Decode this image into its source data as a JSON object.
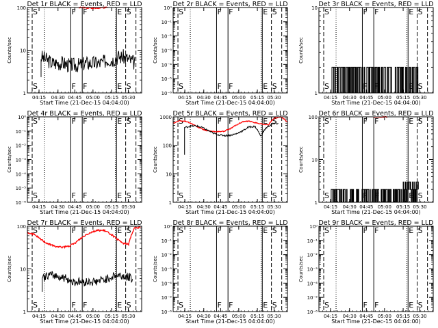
{
  "figure": {
    "xlabel": "Start Time (21-Dec-15 04:04:00)",
    "ylabel": "Counts/sec",
    "xticks": [
      "04:15",
      "04:30",
      "04:45",
      "05:00",
      "05:15",
      "05:30"
    ],
    "vlines": [
      {
        "label": "S",
        "style": "dashed",
        "pos": 4.2
      },
      {
        "label": "",
        "style": "dotted",
        "pos": 15
      },
      {
        "label": "F",
        "style": "solid",
        "pos": 38
      },
      {
        "label": "F",
        "style": "solid",
        "pos": 48
      },
      {
        "label": "",
        "style": "dotted",
        "pos": 77
      },
      {
        "label": "E",
        "style": "solid",
        "pos": 78
      },
      {
        "label": "S",
        "style": "dashed",
        "pos": 86
      },
      {
        "label": "",
        "style": "dashed",
        "pos": 95
      }
    ]
  },
  "chart_data": [
    {
      "type": "line",
      "title": "Det 1r BLACK = Events, RED = LLD",
      "yscale": "log",
      "ylim": [
        1,
        100
      ],
      "yticks": [
        "1",
        "10",
        "100"
      ],
      "series": [
        {
          "name": "BLACK",
          "color": "#000000",
          "kind": "noisy",
          "y": [
            7,
            6,
            5,
            5,
            5,
            4.5,
            4.5,
            4.5,
            5,
            5,
            5,
            5,
            6,
            6,
            7,
            7,
            6,
            5
          ],
          "x_range": [
            12,
            94
          ],
          "noise": 0.35,
          "start_drop": 2.6
        },
        {
          "name": "RED",
          "color": "#ff0000",
          "kind": "top",
          "y": [
            100,
            98,
            96,
            100
          ],
          "x_range": [
            45,
            70
          ],
          "noise": 0.03
        }
      ]
    },
    {
      "type": "line",
      "title": "Det 2r BLACK = Events, RED = LLD",
      "yscale": "log",
      "ylim": [
        1e-06,
        1
      ],
      "yticks": [
        "10⁻⁶",
        "10⁻⁵",
        "10⁻⁴",
        "10⁻³",
        "10⁻²",
        "10⁻¹",
        "10⁰"
      ],
      "series": []
    },
    {
      "type": "line",
      "title": "Det 3r BLACK = Events, RED = LLD",
      "yscale": "log",
      "ylim": [
        1,
        10
      ],
      "yticks": [
        "1",
        "10"
      ],
      "series": [
        {
          "name": "BLACK",
          "color": "#000000",
          "kind": "binary",
          "levels": [
            1,
            2
          ],
          "x_range": [
            10,
            87
          ]
        }
      ]
    },
    {
      "type": "line",
      "title": "Det 4r BLACK = Events, RED = LLD",
      "yscale": "log",
      "ylim": [
        1e-06,
        1
      ],
      "yticks": [
        "10⁻⁶",
        "10⁻⁵",
        "10⁻⁴",
        "10⁻³",
        "10⁻²",
        "10⁻¹",
        "10⁰"
      ],
      "series": []
    },
    {
      "type": "line",
      "title": "Det 5r BLACK = Events, RED = LLD",
      "yscale": "log",
      "ylim": [
        1,
        1000
      ],
      "yticks": [
        "1",
        "10",
        "100",
        "1000"
      ],
      "series": [
        {
          "name": "RED",
          "color": "#ff0000",
          "kind": "smooth",
          "y": [
            600,
            720,
            700,
            560,
            420,
            340,
            310,
            300,
            310,
            380,
            520,
            680,
            700,
            620,
            560,
            520,
            900,
            1000,
            650
          ],
          "x_range": [
            0,
            100
          ],
          "noise": 0.03
        },
        {
          "name": "BLACK",
          "color": "#000000",
          "kind": "noisy",
          "y": [
            420,
            470,
            480,
            420,
            330,
            260,
            230,
            220,
            230,
            260,
            330,
            440,
            460,
            200,
            420,
            560,
            590
          ],
          "x_range": [
            10,
            92
          ],
          "noise": 0.06,
          "start_drop": 4
        }
      ]
    },
    {
      "type": "line",
      "title": "Det 6r BLACK = Events, RED = LLD",
      "yscale": "log",
      "ylim": [
        1,
        100
      ],
      "yticks": [
        "1",
        "10",
        "100"
      ],
      "series": [
        {
          "name": "BLACK",
          "color": "#000000",
          "kind": "binary",
          "levels": [
            1,
            2,
            3
          ],
          "x_range": [
            10,
            87
          ]
        },
        {
          "name": "RED",
          "color": "#ff0000",
          "kind": "top",
          "y": [
            100,
            98,
            100
          ],
          "x_range": [
            48,
            60
          ],
          "noise": 0.02
        }
      ]
    },
    {
      "type": "line",
      "title": "Det 7r BLACK = Events, RED = LLD",
      "yscale": "log",
      "ylim": [
        1,
        100
      ],
      "yticks": [
        "1",
        "10",
        "100"
      ],
      "series": [
        {
          "name": "RED",
          "color": "#ff0000",
          "kind": "smooth",
          "y": [
            70,
            65,
            52,
            42,
            36,
            33,
            32,
            34,
            40,
            52,
            65,
            75,
            80,
            78,
            65,
            50,
            40,
            38,
            90,
            95
          ],
          "x_range": [
            0,
            99
          ],
          "noise": 0.04
        },
        {
          "name": "BLACK",
          "color": "#000000",
          "kind": "noisy",
          "y": [
            6,
            7,
            7,
            6.5,
            6,
            5,
            5,
            5,
            5,
            5,
            5.5,
            6,
            7,
            7,
            6.5,
            6
          ],
          "x_range": [
            13,
            92
          ],
          "noise": 0.2,
          "start_drop": 2
        }
      ]
    },
    {
      "type": "line",
      "title": "Det 8r BLACK = Events, RED = LLD",
      "yscale": "log",
      "ylim": [
        1e-06,
        1
      ],
      "yticks": [
        "10⁻⁶",
        "10⁻⁵",
        "10⁻⁴",
        "10⁻³",
        "10⁻²",
        "10⁻¹",
        "10⁰"
      ],
      "series": []
    },
    {
      "type": "line",
      "title": "Det 9r BLACK = Events, RED = LLD",
      "yscale": "log",
      "ylim": [
        1e-06,
        1
      ],
      "yticks": [
        "10⁻⁶",
        "10⁻⁵",
        "10⁻⁴",
        "10⁻³",
        "10⁻²",
        "10⁻¹",
        "10⁰"
      ],
      "series": []
    }
  ]
}
